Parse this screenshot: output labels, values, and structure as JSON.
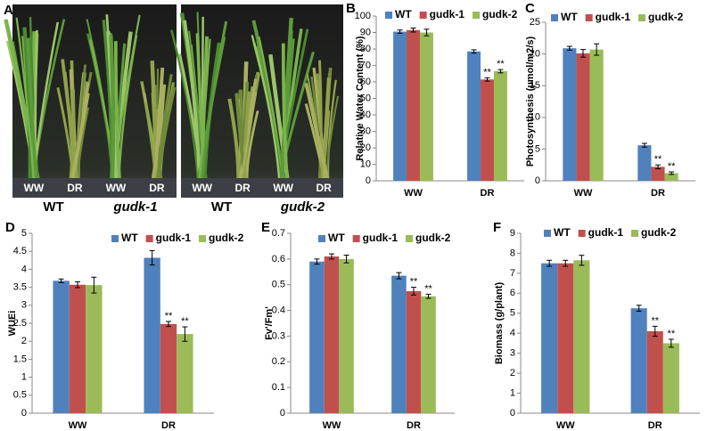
{
  "panel_a": {
    "panel": "A",
    "photos": [
      {
        "conditions": [
          "WW",
          "DR",
          "WW",
          "DR"
        ],
        "genotypes": [
          "WT",
          "gudk-1"
        ]
      },
      {
        "conditions": [
          "WW",
          "DR",
          "WW",
          "DR"
        ],
        "genotypes": [
          "WT",
          "gudk-2"
        ]
      }
    ]
  },
  "chart_data": [
    {
      "type": "bar",
      "panel": "B",
      "ylabel": "Relative Water Content (%)",
      "categories": [
        "WW",
        "DR"
      ],
      "ylim": [
        0,
        100
      ],
      "yticks": [
        0,
        10,
        20,
        30,
        40,
        50,
        60,
        70,
        80,
        90,
        100
      ],
      "legend": "top",
      "series": [
        {
          "name": "WT",
          "color": "#4f81bd",
          "values": [
            90.5,
            78.5
          ],
          "errors": [
            1,
            1
          ],
          "significance": [
            null,
            null
          ]
        },
        {
          "name": "gudk-1",
          "color": "#c0504d",
          "values": [
            91.5,
            61.5
          ],
          "errors": [
            1.2,
            1
          ],
          "significance": [
            null,
            "**"
          ]
        },
        {
          "name": "gudk-2",
          "color": "#9bbb59",
          "values": [
            90,
            66.5
          ],
          "errors": [
            2,
            1
          ],
          "significance": [
            null,
            "**"
          ]
        }
      ]
    },
    {
      "type": "bar",
      "panel": "C",
      "ylabel": "Photosynthesis (µmol/m2/s)",
      "categories": [
        "WW",
        "DR"
      ],
      "ylim": [
        0,
        25
      ],
      "yticks": [
        0,
        5,
        10,
        15,
        20,
        25
      ],
      "legend": "top",
      "series": [
        {
          "name": "WT",
          "color": "#4f81bd",
          "values": [
            20.9,
            5.6
          ],
          "errors": [
            0.3,
            0.3
          ],
          "significance": [
            null,
            null
          ]
        },
        {
          "name": "gudk-1",
          "color": "#c0504d",
          "values": [
            20.1,
            2.2
          ],
          "errors": [
            0.6,
            0.3
          ],
          "significance": [
            null,
            "**"
          ]
        },
        {
          "name": "gudk-2",
          "color": "#9bbb59",
          "values": [
            20.7,
            1.2
          ],
          "errors": [
            0.9,
            0.2
          ],
          "significance": [
            null,
            "**"
          ]
        }
      ]
    },
    {
      "type": "bar",
      "panel": "D",
      "ylabel": "WUEi",
      "categories": [
        "WW",
        "DR"
      ],
      "ylim": [
        0,
        5
      ],
      "yticks": [
        0,
        0.5,
        1,
        1.5,
        2,
        2.5,
        3,
        3.5,
        4,
        4.5,
        5
      ],
      "legend": "top",
      "series": [
        {
          "name": "WT",
          "color": "#4f81bd",
          "values": [
            3.68,
            4.32
          ],
          "errors": [
            0.05,
            0.2
          ],
          "significance": [
            null,
            null
          ]
        },
        {
          "name": "gudk-1",
          "color": "#c0504d",
          "values": [
            3.57,
            2.48
          ],
          "errors": [
            0.08,
            0.07
          ],
          "significance": [
            null,
            "**"
          ]
        },
        {
          "name": "gudk-2",
          "color": "#9bbb59",
          "values": [
            3.56,
            2.2
          ],
          "errors": [
            0.22,
            0.2
          ],
          "significance": [
            null,
            "**"
          ]
        }
      ]
    },
    {
      "type": "bar",
      "panel": "E",
      "ylabel": "Fv'/Fm'",
      "categories": [
        "WW",
        "DR"
      ],
      "ylim": [
        0,
        0.7
      ],
      "yticks": [
        0,
        0.1,
        0.2,
        0.3,
        0.4,
        0.5,
        0.6,
        0.7
      ],
      "legend": "top",
      "series": [
        {
          "name": "WT",
          "color": "#4f81bd",
          "values": [
            0.59,
            0.535
          ],
          "errors": [
            0.01,
            0.012
          ],
          "significance": [
            null,
            null
          ]
        },
        {
          "name": "gudk-1",
          "color": "#c0504d",
          "values": [
            0.61,
            0.475
          ],
          "errors": [
            0.01,
            0.015
          ],
          "significance": [
            null,
            "**"
          ]
        },
        {
          "name": "gudk-2",
          "color": "#9bbb59",
          "values": [
            0.6,
            0.455
          ],
          "errors": [
            0.015,
            0.008
          ],
          "significance": [
            null,
            "**"
          ]
        }
      ]
    },
    {
      "type": "bar",
      "panel": "F",
      "ylabel": "Biomass (g/plant)",
      "categories": [
        "WW",
        "DR"
      ],
      "ylim": [
        0,
        9
      ],
      "yticks": [
        0,
        1,
        2,
        3,
        4,
        5,
        6,
        7,
        8,
        9
      ],
      "legend": "top",
      "series": [
        {
          "name": "WT",
          "color": "#4f81bd",
          "values": [
            7.5,
            5.25
          ],
          "errors": [
            0.15,
            0.15
          ],
          "significance": [
            null,
            null
          ]
        },
        {
          "name": "gudk-1",
          "color": "#c0504d",
          "values": [
            7.5,
            4.1
          ],
          "errors": [
            0.15,
            0.25
          ],
          "significance": [
            null,
            "**"
          ]
        },
        {
          "name": "gudk-2",
          "color": "#9bbb59",
          "values": [
            7.65,
            3.5
          ],
          "errors": [
            0.25,
            0.2
          ],
          "significance": [
            null,
            "**"
          ]
        }
      ]
    }
  ]
}
